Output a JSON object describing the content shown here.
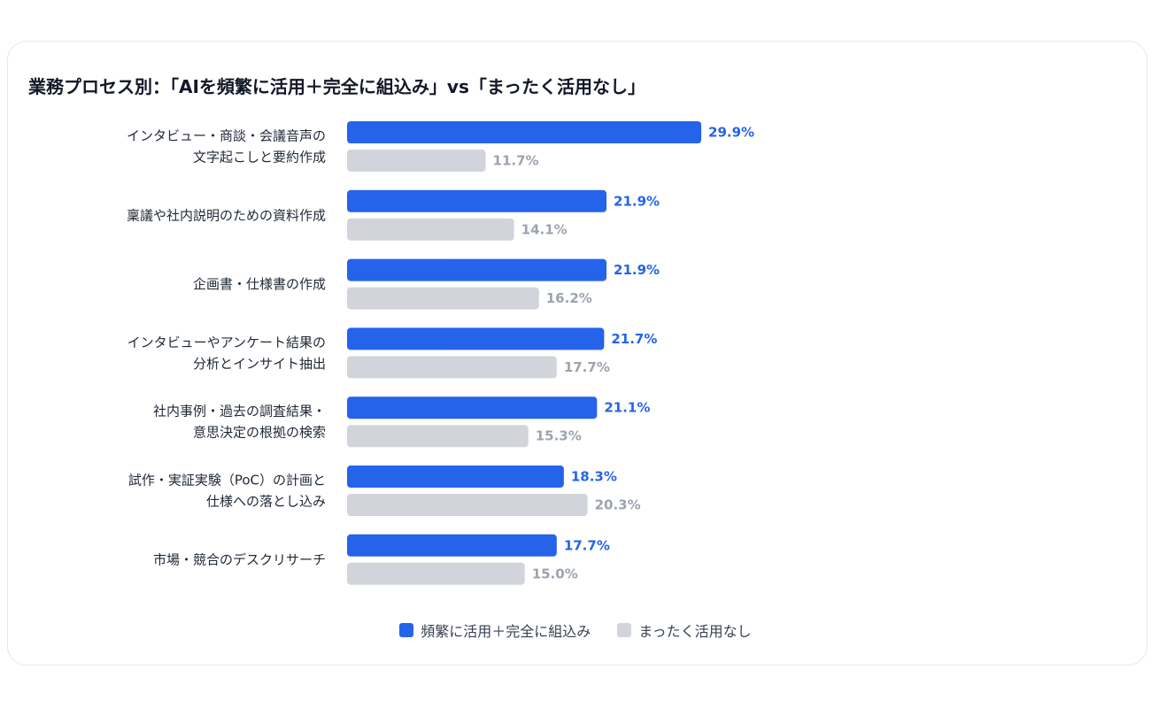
{
  "colors": {
    "series_primary": "#2563eb",
    "series_secondary": "#d1d5db",
    "label_primary": "#2563eb",
    "label_secondary": "#9ca3af"
  },
  "chart_data": {
    "type": "bar",
    "orientation": "horizontal",
    "title": "業務プロセス別：「AIを頻繁に活用＋完全に組込み」vs「まったく活用なし」",
    "categories": [
      [
        "インタビュー・商談・会議音声の",
        "文字起こしと要約作成"
      ],
      [
        "稟議や社内説明のための資料作成"
      ],
      [
        "企画書・仕様書の作成"
      ],
      [
        "インタビューやアンケート結果の",
        "分析とインサイト抽出"
      ],
      [
        "社内事例・過去の調査結果・",
        "意思決定の根拠の検索"
      ],
      [
        "試作・実証実験（PoC）の計画と",
        "仕様への落とし込み"
      ],
      [
        "市場・競合のデスクリサーチ"
      ]
    ],
    "series": [
      {
        "name": "頻繁に活用＋完全に組込み",
        "values": [
          29.9,
          21.9,
          21.9,
          21.7,
          21.1,
          18.3,
          17.7
        ],
        "labels": [
          "29.9%",
          "21.9%",
          "21.9%",
          "21.7%",
          "21.1%",
          "18.3%",
          "17.7%"
        ]
      },
      {
        "name": "まったく活用なし",
        "values": [
          11.7,
          14.1,
          16.2,
          17.7,
          15.3,
          20.3,
          15.0
        ],
        "labels": [
          "11.7%",
          "14.1%",
          "16.2%",
          "17.7%",
          "15.3%",
          "20.3%",
          "15.0%"
        ]
      }
    ],
    "legend_position": "bottom",
    "grid": false
  }
}
